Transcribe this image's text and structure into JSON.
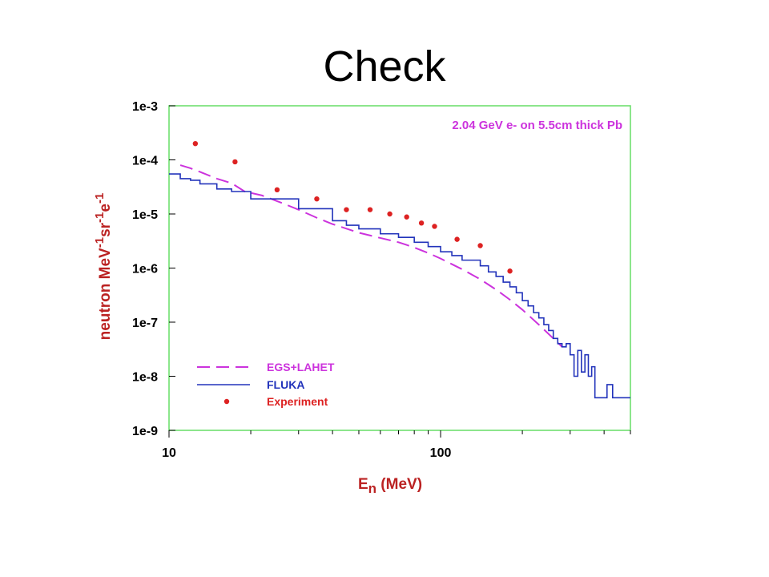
{
  "slide": {
    "title": "Check"
  },
  "chart_data": {
    "type": "line",
    "annotation": "2.04 GeV e- on 5.5cm thick Pb",
    "xlabel": {
      "main": "E",
      "sub": "n",
      "rest": " (MeV)"
    },
    "ylabel": {
      "p1": "neutron MeV",
      "s1": "-1",
      "p2": "sr",
      "s2": "-1",
      "p3": "e",
      "s3": "-1"
    },
    "xscale": "log",
    "yscale": "log",
    "xlim": [
      10,
      500
    ],
    "ylim": [
      1e-09,
      0.001
    ],
    "x_ticks": [
      {
        "value": 10,
        "label": "10"
      },
      {
        "value": 100,
        "label": "100"
      }
    ],
    "y_ticks": [
      {
        "value": 0.001,
        "label": "1e-3"
      },
      {
        "value": 0.0001,
        "label": "1e-4"
      },
      {
        "value": 1e-05,
        "label": "1e-5"
      },
      {
        "value": 1e-06,
        "label": "1e-6"
      },
      {
        "value": 1e-07,
        "label": "1e-7"
      },
      {
        "value": 1e-08,
        "label": "1e-8"
      },
      {
        "value": 1e-09,
        "label": "1e-9"
      }
    ],
    "legend_position": "bottom-left",
    "colors": {
      "frame": "#66dd66",
      "axis_labels": "#bb2222",
      "egs": "#cc33dd",
      "fluka": "#2233bb",
      "experiment": "#dd2222",
      "annotation": "#cc33dd"
    },
    "series": [
      {
        "name": "EGS+LAHET",
        "style": "dashed",
        "x": [
          11,
          12,
          13,
          15,
          17,
          19,
          22,
          26,
          30,
          35,
          40,
          50,
          60,
          70,
          80,
          90,
          100,
          120,
          140,
          160,
          180,
          200,
          230,
          260,
          280
        ],
        "y": [
          8e-05,
          7e-05,
          6e-05,
          4.5e-05,
          3.7e-05,
          2.6e-05,
          2.2e-05,
          1.6e-05,
          1.2e-05,
          8.5e-06,
          6.5e-06,
          4.5e-06,
          3.6e-06,
          3e-06,
          2.4e-06,
          1.9e-06,
          1.5e-06,
          9.5e-07,
          6.2e-07,
          4e-07,
          2.6e-07,
          1.7e-07,
          9e-08,
          5e-08,
          3.5e-08
        ]
      },
      {
        "name": "FLUKA",
        "style": "step",
        "x": [
          10,
          11,
          12,
          13,
          15,
          17,
          20,
          30,
          40,
          45,
          50,
          60,
          70,
          80,
          90,
          100,
          110,
          120,
          140,
          150,
          160,
          170,
          180,
          190,
          200,
          210,
          220,
          230,
          240,
          250,
          260,
          270,
          280,
          290,
          300,
          310,
          320,
          330,
          340,
          350,
          360,
          370,
          400,
          410,
          430,
          500
        ],
        "y": [
          5.5e-05,
          4.5e-05,
          4.2e-05,
          3.6e-05,
          2.9e-05,
          2.6e-05,
          1.9e-05,
          1.25e-05,
          7.5e-06,
          6.2e-06,
          5.3e-06,
          4.3e-06,
          3.7e-06,
          3e-06,
          2.5e-06,
          2e-06,
          1.7e-06,
          1.4e-06,
          1.1e-06,
          8.5e-07,
          7e-07,
          5.5e-07,
          4.5e-07,
          3.5e-07,
          2.5e-07,
          2e-07,
          1.5e-07,
          1.2e-07,
          9e-08,
          7e-08,
          5e-08,
          4e-08,
          3.5e-08,
          4e-08,
          2.5e-08,
          1e-08,
          3e-08,
          1.2e-08,
          2.5e-08,
          1e-08,
          1.5e-08,
          4e-09,
          4e-09,
          7e-09,
          4e-09,
          4e-09
        ]
      },
      {
        "name": "Experiment",
        "style": "points",
        "x": [
          12.5,
          17.5,
          25,
          35,
          45,
          55,
          65,
          75,
          85,
          95,
          115,
          140,
          180
        ],
        "y": [
          0.0002,
          9.2e-05,
          2.8e-05,
          1.9e-05,
          1.2e-05,
          1.2e-05,
          1e-05,
          8.8e-06,
          6.8e-06,
          5.9e-06,
          3.4e-06,
          2.6e-06,
          8.8e-07
        ]
      }
    ]
  }
}
